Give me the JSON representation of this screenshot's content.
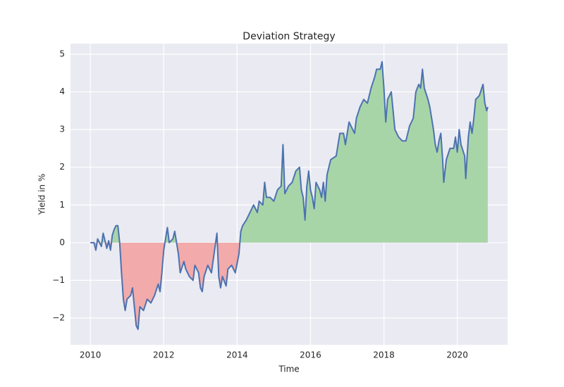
{
  "chart_data": {
    "type": "line",
    "title": "Deviation Strategy",
    "xlabel": "Time",
    "ylabel": "Yield in %",
    "x": [
      2010.0,
      2010.1,
      2010.15,
      2010.2,
      2010.3,
      2010.35,
      2010.45,
      2010.5,
      2010.55,
      2010.6,
      2010.65,
      2010.7,
      2010.75,
      2010.8,
      2010.85,
      2010.9,
      2010.95,
      2011.0,
      2011.1,
      2011.15,
      2011.2,
      2011.25,
      2011.3,
      2011.35,
      2011.45,
      2011.55,
      2011.65,
      2011.75,
      2011.85,
      2011.9,
      2011.95,
      2012.0,
      2012.05,
      2012.1,
      2012.15,
      2012.25,
      2012.3,
      2012.35,
      2012.4,
      2012.45,
      2012.55,
      2012.6,
      2012.7,
      2012.8,
      2012.85,
      2012.95,
      2013.0,
      2013.05,
      2013.1,
      2013.2,
      2013.3,
      2013.4,
      2013.45,
      2013.5,
      2013.55,
      2013.6,
      2013.7,
      2013.75,
      2013.85,
      2013.95,
      2014.05,
      2014.1,
      2014.15,
      2014.25,
      2014.35,
      2014.45,
      2014.55,
      2014.6,
      2014.7,
      2014.75,
      2014.8,
      2014.9,
      2015.0,
      2015.1,
      2015.2,
      2015.25,
      2015.3,
      2015.4,
      2015.5,
      2015.6,
      2015.7,
      2015.75,
      2015.8,
      2015.85,
      2015.9,
      2015.95,
      2016.0,
      2016.05,
      2016.1,
      2016.15,
      2016.25,
      2016.3,
      2016.35,
      2016.4,
      2016.45,
      2016.55,
      2016.7,
      2016.8,
      2016.9,
      2016.95,
      2017.05,
      2017.1,
      2017.2,
      2017.25,
      2017.35,
      2017.45,
      2017.55,
      2017.65,
      2017.75,
      2017.8,
      2017.9,
      2017.95,
      2018.0,
      2018.05,
      2018.1,
      2018.15,
      2018.2,
      2018.3,
      2018.4,
      2018.5,
      2018.6,
      2018.7,
      2018.8,
      2018.87,
      2018.95,
      2019.0,
      2019.05,
      2019.1,
      2019.2,
      2019.25,
      2019.3,
      2019.35,
      2019.4,
      2019.45,
      2019.5,
      2019.55,
      2019.6,
      2019.63,
      2019.7,
      2019.8,
      2019.9,
      2019.95,
      2020.0,
      2020.05,
      2020.1,
      2020.2,
      2020.23,
      2020.3,
      2020.35,
      2020.4,
      2020.45,
      2020.5,
      2020.6,
      2020.7,
      2020.75,
      2020.8,
      2020.83
    ],
    "values": [
      0,
      0,
      -0.2,
      0.1,
      -0.1,
      0.25,
      -0.15,
      0.05,
      -0.2,
      0.2,
      0.35,
      0.45,
      0.45,
      0,
      -0.8,
      -1.5,
      -1.8,
      -1.5,
      -1.4,
      -1.2,
      -1.7,
      -2.2,
      -2.3,
      -1.7,
      -1.8,
      -1.5,
      -1.6,
      -1.4,
      -1.1,
      -1.3,
      -0.8,
      -0.2,
      0.1,
      0.4,
      0,
      0.1,
      0.3,
      0,
      -0.3,
      -0.8,
      -0.5,
      -0.7,
      -0.9,
      -1.0,
      -0.6,
      -0.8,
      -1.2,
      -1.3,
      -0.9,
      -0.6,
      -0.8,
      -0.1,
      0.25,
      -0.9,
      -1.2,
      -0.9,
      -1.15,
      -0.7,
      -0.6,
      -0.8,
      -0.3,
      0.3,
      0.45,
      0.6,
      0.8,
      1.0,
      0.8,
      1.1,
      1.0,
      1.6,
      1.2,
      1.2,
      1.1,
      1.4,
      1.5,
      2.6,
      1.3,
      1.5,
      1.6,
      1.9,
      2.0,
      1.4,
      1.2,
      0.6,
      1.5,
      1.9,
      1.4,
      1.2,
      0.9,
      1.6,
      1.4,
      1.2,
      1.6,
      1.1,
      1.8,
      2.2,
      2.3,
      2.9,
      2.9,
      2.6,
      3.2,
      3.1,
      2.9,
      3.3,
      3.6,
      3.8,
      3.7,
      4.1,
      4.4,
      4.6,
      4.6,
      4.8,
      4.1,
      3.2,
      3.8,
      3.9,
      4.0,
      3.0,
      2.8,
      2.7,
      2.7,
      3.1,
      3.3,
      4.0,
      4.2,
      4.1,
      4.6,
      4.1,
      3.8,
      3.6,
      3.3,
      3.0,
      2.6,
      2.4,
      2.7,
      2.9,
      2.2,
      1.6,
      2.2,
      2.5,
      2.5,
      2.8,
      2.4,
      3.0,
      2.6,
      2.3,
      1.7,
      2.8,
      3.2,
      2.9,
      3.3,
      3.8,
      3.9,
      4.2,
      3.7,
      3.5,
      3.6
    ],
    "color": "#4c72b0",
    "fill_above_color": "#a8d5a8",
    "fill_below_color": "#f2aaaa",
    "xlim": [
      2009.46,
      2021.37
    ],
    "ylim": [
      -2.71,
      5.28
    ],
    "xticks": [
      2010,
      2012,
      2014,
      2016,
      2018,
      2020
    ],
    "yticks": [
      {
        "value": -2,
        "label": "−2"
      },
      {
        "value": -1,
        "label": "−1"
      },
      0,
      1,
      2,
      3,
      4,
      5
    ],
    "grid": true
  }
}
